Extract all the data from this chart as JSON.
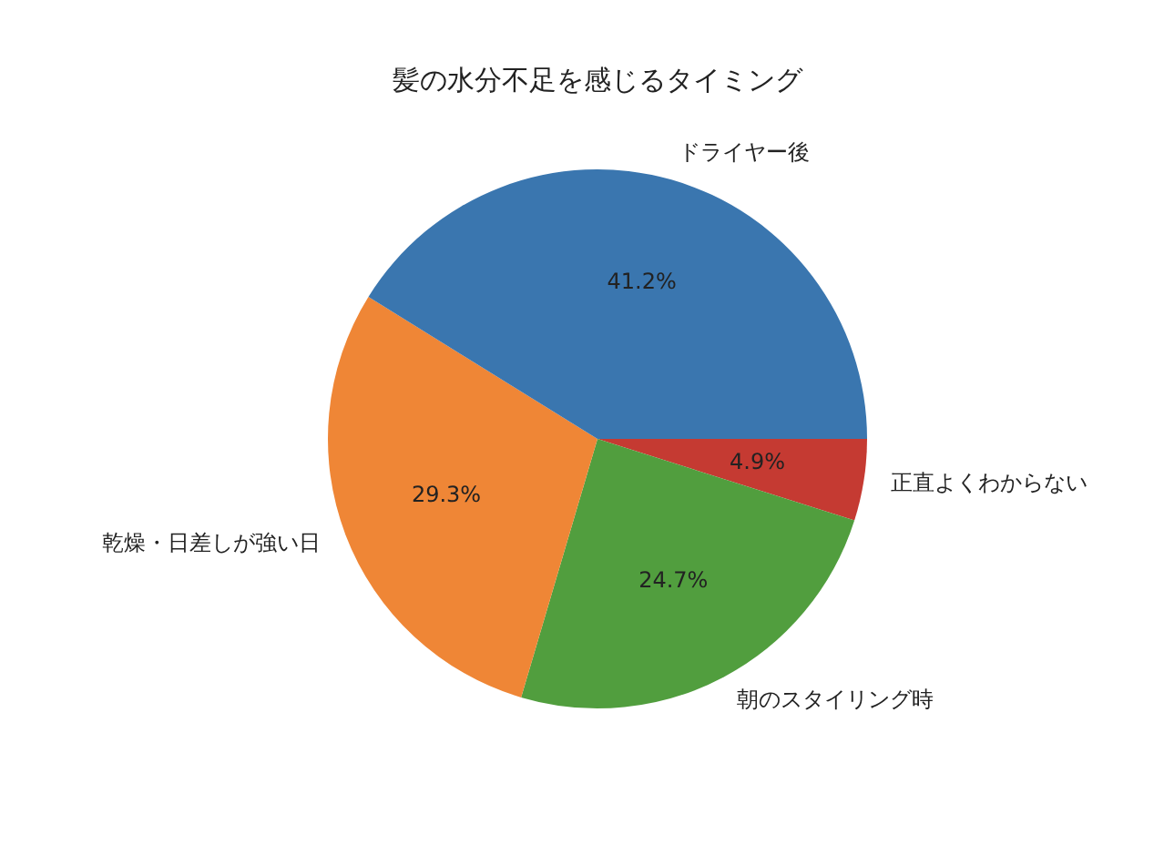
{
  "chart_data": {
    "type": "pie",
    "title": "髪の水分不足を感じるタイミング",
    "categories": [
      "ドライヤー後",
      "乾燥・日差しが強い日",
      "朝のスタイリング時",
      "正直よくわからない"
    ],
    "values": [
      41.2,
      29.3,
      24.7,
      4.9
    ],
    "colors": [
      "#3a76af",
      "#ef8636",
      "#519e3e",
      "#c53a32"
    ],
    "value_labels": [
      "41.2%",
      "29.3%",
      "24.7%",
      "4.9%"
    ],
    "legend": false
  }
}
